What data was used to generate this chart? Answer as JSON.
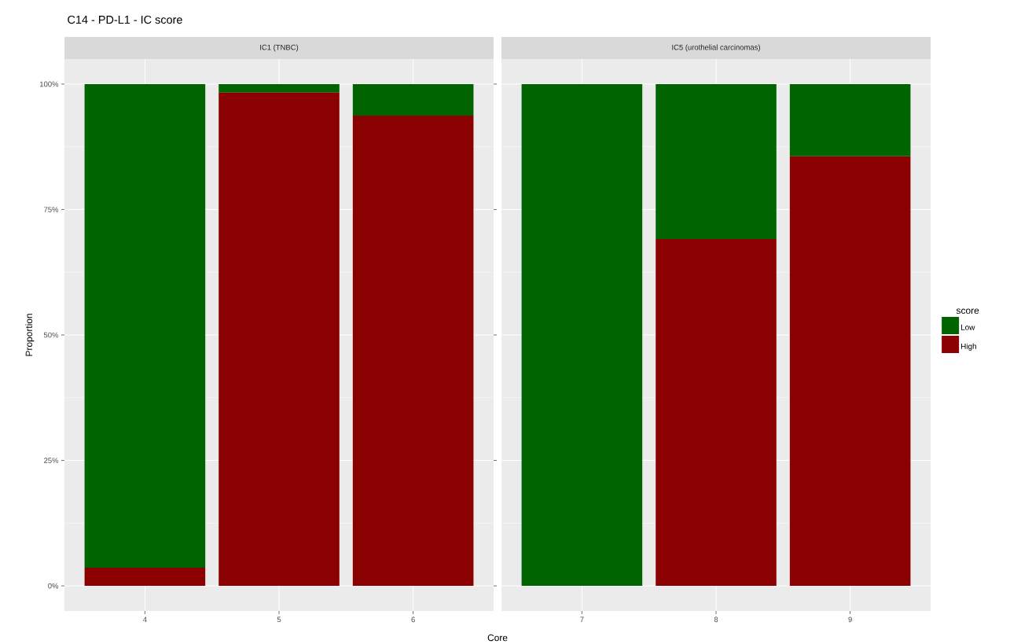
{
  "chart_data": [
    {
      "type": "bar",
      "title": "C14 - PD-L1 - IC score",
      "subtitle": "IC1 (TNBC)",
      "xlabel": "Core",
      "ylabel": "Proportion",
      "categories": [
        "4",
        "5",
        "6"
      ],
      "stacked": true,
      "series": [
        {
          "color": "#8b0000",
          "values": [
            3.6,
            98.3,
            93.7
          ]
        },
        {
          "color": "#006400",
          "values": [
            96.4,
            1.7,
            6.3
          ]
        }
      ],
      "ylim": [
        -5,
        105
      ],
      "yticks": [
        {
          "value": 0,
          "label": "0%"
        },
        {
          "value": 25,
          "label": "25%"
        },
        {
          "value": 50,
          "label": "50%"
        },
        {
          "value": 75,
          "label": "75%"
        },
        {
          "value": 100,
          "label": "100%"
        }
      ],
      "grid": true
    },
    {
      "type": "bar",
      "subtitle": "IC5 (urothelial carcinomas)",
      "legend_title": "score",
      "legend": "right",
      "categories": [
        "7",
        "8",
        "9"
      ],
      "stacked": true,
      "series": [
        {
          "name": "High",
          "color": "#8b0000",
          "values": [
            0,
            69.1,
            85.6
          ]
        },
        {
          "name": "Low",
          "color": "#006400",
          "values": [
            100,
            30.9,
            14.4
          ]
        }
      ],
      "ylim": [
        -5,
        105
      ],
      "yticks": [
        {
          "value": 0,
          "label": null
        },
        {
          "value": 25,
          "label": null
        },
        {
          "value": 50,
          "label": null
        },
        {
          "value": 75,
          "label": null
        },
        {
          "value": 100,
          "label": null
        }
      ],
      "grid": true,
      "tick_labels": "x"
    }
  ]
}
